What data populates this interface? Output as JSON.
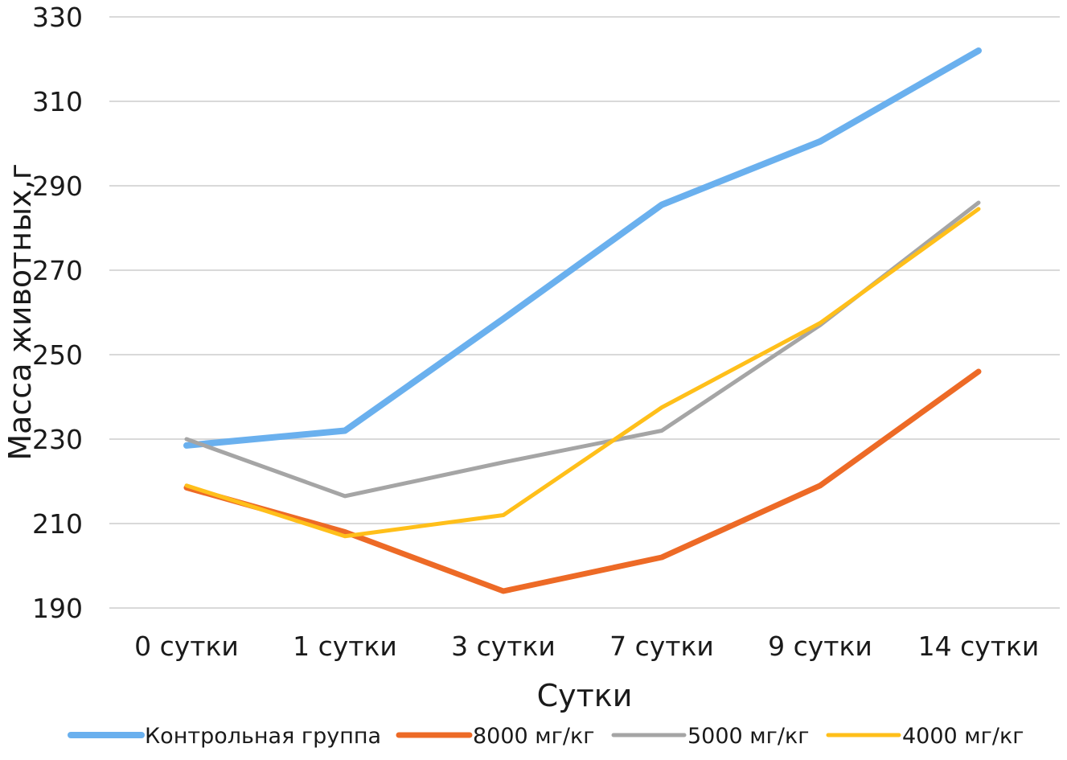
{
  "chart_data": {
    "type": "line",
    "title": "",
    "xlabel": "Сутки",
    "ylabel": "Масса животных,г",
    "categories": [
      "0 сутки",
      "1 сутки",
      "3 сутки",
      "7 сутки",
      "9 сутки",
      "14 сутки"
    ],
    "ylim": [
      190,
      330
    ],
    "yticks": [
      190,
      210,
      230,
      250,
      270,
      290,
      310,
      330
    ],
    "grid": true,
    "legend_position": "bottom",
    "series": [
      {
        "name": "Контрольная группа",
        "color": "#6AB0EE",
        "values": [
          228.5,
          232,
          258.5,
          285.5,
          300.5,
          322
        ]
      },
      {
        "name": "8000 мг/кг",
        "color": "#ED6A26",
        "values": [
          218.5,
          208,
          194,
          202,
          219,
          246
        ]
      },
      {
        "name": "5000 мг/кг",
        "color": "#A5A5A5",
        "values": [
          230,
          216.5,
          224.5,
          232,
          257,
          286
        ]
      },
      {
        "name": "4000 мг/кг",
        "color": "#FFBF1A",
        "values": [
          219,
          207,
          212,
          237.5,
          257.5,
          284.5
        ]
      }
    ]
  }
}
